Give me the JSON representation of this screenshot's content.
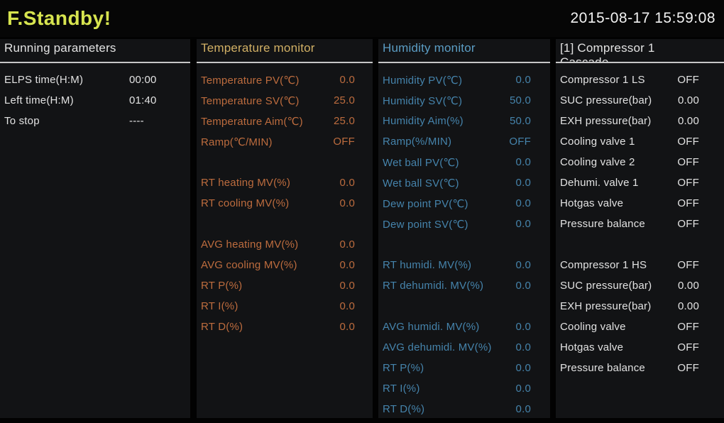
{
  "topbar": {
    "status": "F.Standby!",
    "datetime": "2015-08-17 15:59:08"
  },
  "colors": {
    "background": "#020202",
    "panel_background": "#121315",
    "status_text": "#d7e44f",
    "plain_text": "#e2e2e2",
    "temperature_header": "#d1b065",
    "temperature_text": "#bd6c3e",
    "humidity_header": "#5b9dc4",
    "humidity_text": "#4583ab",
    "header_underline": "#c6c6c6"
  },
  "panels": [
    {
      "title": "Running parameters",
      "rows": [
        {
          "label": "ELPS time(H:M)",
          "value": "00:00"
        },
        {
          "label": "Left time(H:M)",
          "value": "01:40"
        },
        {
          "label": "To stop",
          "value": "----"
        }
      ]
    },
    {
      "title": "Temperature monitor",
      "rows": [
        {
          "label": "Temperature PV(℃)",
          "value": "0.0"
        },
        {
          "label": "Temperature SV(℃)",
          "value": "25.0"
        },
        {
          "label": "Temperature Aim(℃)",
          "value": "25.0"
        },
        {
          "label": "Ramp(℃/MIN)",
          "value": "OFF"
        },
        {
          "label": "",
          "value": ""
        },
        {
          "label": "RT heating MV(%)",
          "value": "0.0"
        },
        {
          "label": "RT cooling MV(%)",
          "value": "0.0"
        },
        {
          "label": "",
          "value": ""
        },
        {
          "label": "AVG heating MV(%)",
          "value": "0.0"
        },
        {
          "label": "AVG cooling MV(%)",
          "value": "0.0"
        },
        {
          "label": "RT P(%)",
          "value": "0.0"
        },
        {
          "label": "RT I(%)",
          "value": "0.0"
        },
        {
          "label": "RT D(%)",
          "value": "0.0"
        }
      ]
    },
    {
      "title": "Humidity monitor",
      "rows": [
        {
          "label": "Humidity PV(℃)",
          "value": "0.0"
        },
        {
          "label": "Humidity SV(℃)",
          "value": "50.0"
        },
        {
          "label": "Humidity Aim(%)",
          "value": "50.0"
        },
        {
          "label": "Ramp(%/MIN)",
          "value": "OFF"
        },
        {
          "label": "Wet ball PV(℃)",
          "value": "0.0"
        },
        {
          "label": "Wet ball SV(℃)",
          "value": "0.0"
        },
        {
          "label": "Dew point PV(℃)",
          "value": "0.0"
        },
        {
          "label": "Dew point SV(℃)",
          "value": "0.0"
        },
        {
          "label": "",
          "value": ""
        },
        {
          "label": "RT humidi. MV(%)",
          "value": "0.0"
        },
        {
          "label": "RT dehumidi. MV(%)",
          "value": "0.0"
        },
        {
          "label": "",
          "value": ""
        },
        {
          "label": "AVG humidi. MV(%)",
          "value": "0.0"
        },
        {
          "label": "AVG dehumidi. MV(%)",
          "value": "0.0"
        },
        {
          "label": "RT P(%)",
          "value": "0.0"
        },
        {
          "label": "RT I(%)",
          "value": "0.0"
        },
        {
          "label": "RT D(%)",
          "value": "0.0"
        }
      ]
    },
    {
      "title": "[1] Compressor 1",
      "title_line2": "Cascade",
      "rows": [
        {
          "label": "Compressor 1 LS",
          "value": "OFF"
        },
        {
          "label": "SUC pressure(bar)",
          "value": "0.00"
        },
        {
          "label": "EXH pressure(bar)",
          "value": "0.00"
        },
        {
          "label": "Cooling valve 1",
          "value": "OFF"
        },
        {
          "label": "Cooling valve 2",
          "value": "OFF"
        },
        {
          "label": "Dehumi. valve 1",
          "value": "OFF"
        },
        {
          "label": "Hotgas valve",
          "value": "OFF"
        },
        {
          "label": "Pressure balance",
          "value": "OFF"
        },
        {
          "label": "",
          "value": ""
        },
        {
          "label": "Compressor 1 HS",
          "value": "OFF"
        },
        {
          "label": "SUC pressure(bar)",
          "value": "0.00"
        },
        {
          "label": "EXH pressure(bar)",
          "value": "0.00"
        },
        {
          "label": "Cooling valve",
          "value": "OFF"
        },
        {
          "label": "Hotgas valve",
          "value": "OFF"
        },
        {
          "label": "Pressure balance",
          "value": "OFF"
        }
      ]
    }
  ]
}
